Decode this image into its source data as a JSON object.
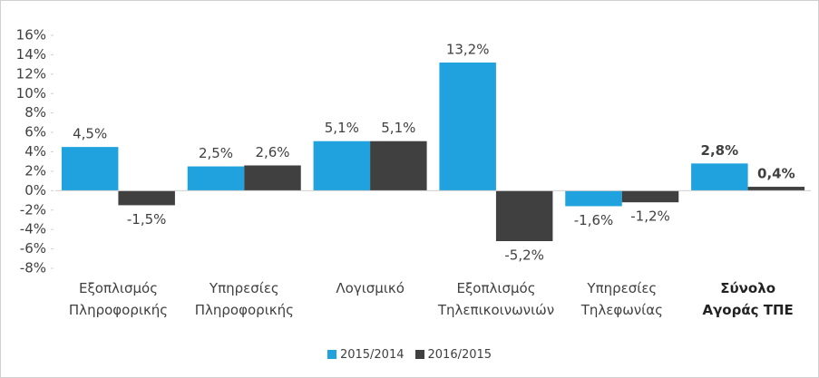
{
  "chart_data": {
    "type": "bar",
    "categories": [
      "Εξοπλισμός\nΠληροφορικής",
      "Υπηρεσίες\nΠληροφορικής",
      "Λογισμικό",
      "Εξοπλισμός\nΤηλεπικοινωνιών",
      "Υπηρεσίες\nΤηλεφωνίας",
      "Σύνολο\nΑγοράς ΤΠΕ"
    ],
    "series": [
      {
        "name": "2015/2014",
        "color": "#1fa2dd",
        "values": [
          4.5,
          2.5,
          5.1,
          13.2,
          -1.6,
          2.8
        ],
        "value_labels": [
          "4,5%",
          "2,5%",
          "5,1%",
          "13,2%",
          "-1,6%",
          "2,8%"
        ]
      },
      {
        "name": "2016/2015",
        "color": "#404040",
        "values": [
          -1.5,
          2.6,
          5.1,
          -5.2,
          -1.2,
          0.4
        ],
        "value_labels": [
          "-1,5%",
          "2,6%",
          "5,1%",
          "-5,2%",
          "-1,2%",
          "0,4%"
        ]
      }
    ],
    "ylim": [
      -8,
      16
    ],
    "yticks": [
      {
        "value": -8,
        "label": "-8%"
      },
      {
        "value": -6,
        "label": "-6%"
      },
      {
        "value": -4,
        "label": "-4%"
      },
      {
        "value": -2,
        "label": "-2%"
      },
      {
        "value": 0,
        "label": "0%"
      },
      {
        "value": 2,
        "label": "2%"
      },
      {
        "value": 4,
        "label": "4%"
      },
      {
        "value": 6,
        "label": "6%"
      },
      {
        "value": 8,
        "label": "8%"
      },
      {
        "value": 10,
        "label": "10%"
      },
      {
        "value": 12,
        "label": "12%"
      },
      {
        "value": 14,
        "label": "14%"
      },
      {
        "value": 16,
        "label": "16%"
      }
    ],
    "legend": "bottom"
  }
}
